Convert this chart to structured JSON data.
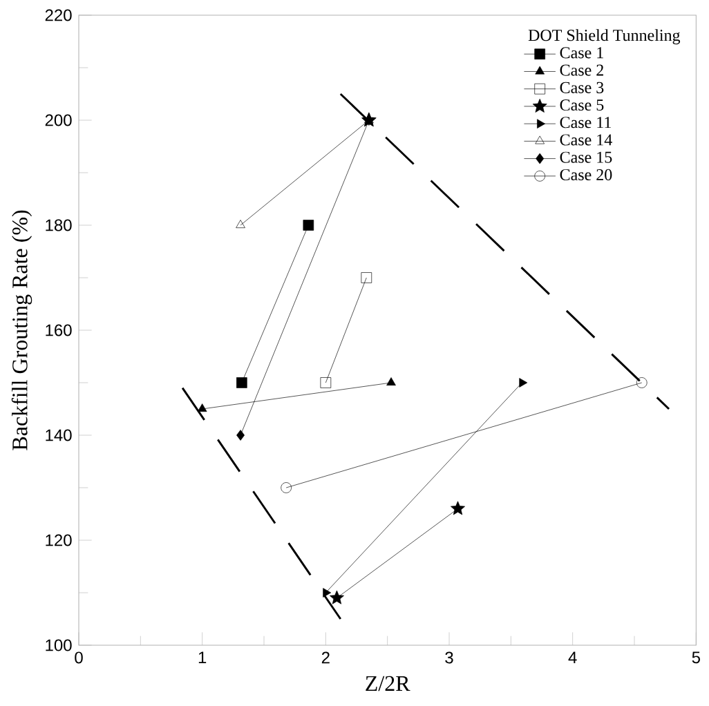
{
  "chart_data": {
    "type": "line",
    "xlabel": "Z/2R",
    "ylabel": "Backfill Grouting Rate (%)",
    "legend_title": "DOT Shield Tunneling",
    "legend": "top right",
    "grid": false,
    "xlim": [
      0,
      5
    ],
    "xticks": [
      0,
      1,
      2,
      3,
      4,
      5
    ],
    "ylim": [
      100,
      220
    ],
    "yticks": [
      100,
      120,
      140,
      160,
      180,
      200,
      220
    ],
    "series": [
      {
        "name": "Case 1",
        "color": "#000000",
        "marker": "square",
        "x": [
          1.32,
          1.86
        ],
        "values": [
          150,
          180
        ]
      },
      {
        "name": "Case 2",
        "color": "#000000",
        "marker": "triangle",
        "x": [
          1.0,
          2.53
        ],
        "values": [
          145,
          150
        ]
      },
      {
        "name": "Case 3",
        "color": "#000000",
        "marker": "square-open",
        "x": [
          2.0,
          2.33
        ],
        "values": [
          150,
          170
        ]
      },
      {
        "name": "Case 5",
        "color": "#000000",
        "marker": "star",
        "x": [
          2.09,
          3.07
        ],
        "values": [
          109,
          126
        ]
      },
      {
        "type": "scatter",
        "color": "#000000",
        "marker": "star",
        "x": [
          2.35
        ],
        "values": [
          200
        ]
      },
      {
        "name": "Case 11",
        "color": "#000000",
        "marker": "triangle-right",
        "x": [
          2.0,
          3.59
        ],
        "values": [
          110,
          150
        ]
      },
      {
        "name": "Case 14",
        "color": "#000000",
        "marker": "triangle-open",
        "x": [
          1.31,
          2.35
        ],
        "values": [
          180,
          200
        ]
      },
      {
        "name": "Case 15",
        "color": "#000000",
        "marker": "diamond",
        "x": [
          1.31,
          2.35
        ],
        "values": [
          140,
          200
        ]
      },
      {
        "name": "Case 20",
        "color": "#000000",
        "marker": "circle-open",
        "x": [
          1.68,
          4.56
        ],
        "values": [
          130,
          150
        ]
      },
      {
        "color": "#000000",
        "marker": "none",
        "line_style": "dashed",
        "x": [
          2.12,
          4.78
        ],
        "values": [
          205,
          145
        ]
      },
      {
        "color": "#000000",
        "marker": "none",
        "line_style": "dashed",
        "x": [
          0.84,
          2.12
        ],
        "values": [
          149,
          105
        ]
      }
    ]
  }
}
